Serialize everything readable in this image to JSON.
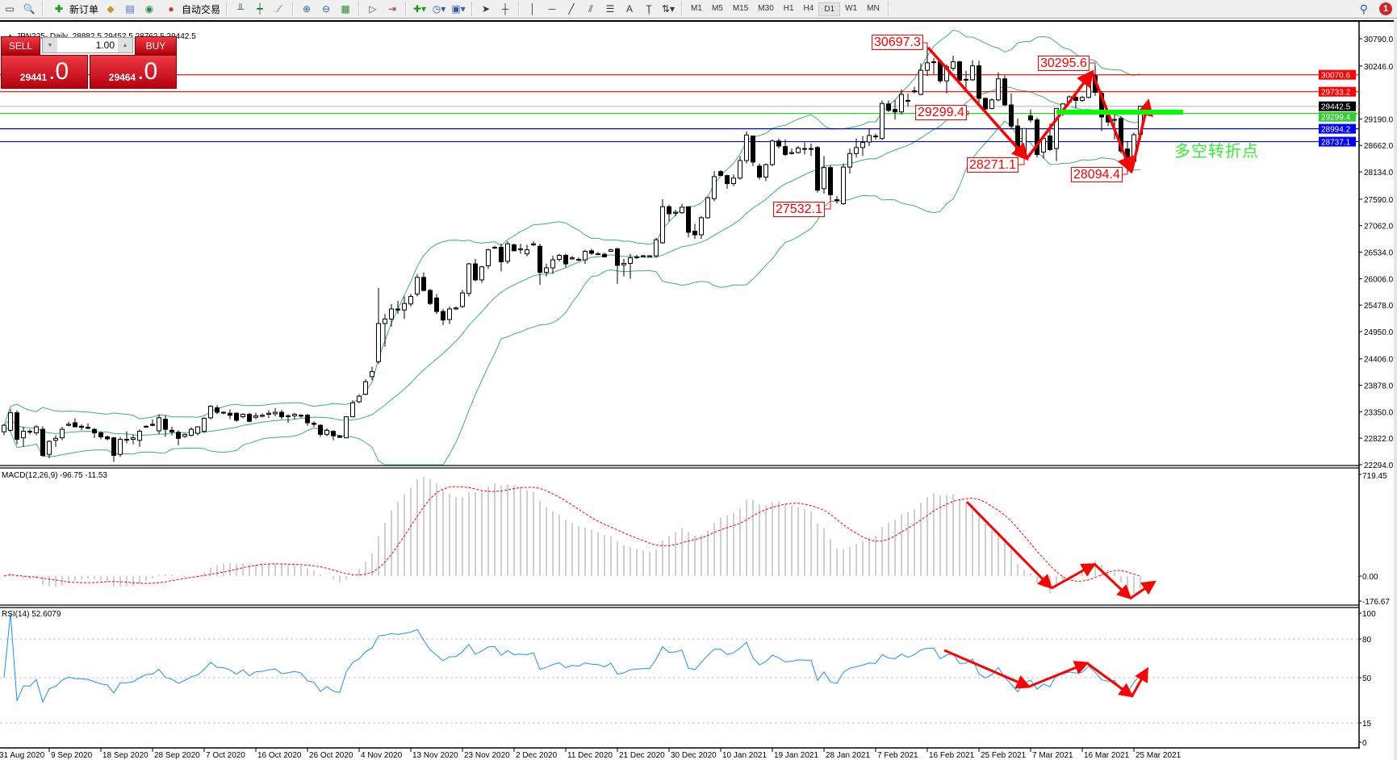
{
  "toolbar": {
    "new_order": "新订单",
    "auto_trading": "自动交易",
    "timeframes": [
      "M1",
      "M5",
      "M15",
      "M30",
      "H1",
      "H4",
      "D1",
      "W1",
      "MN"
    ],
    "active_timeframe": "D1",
    "notification_count": "1"
  },
  "chart": {
    "symbol_line": "JPN225-,Daily",
    "ohlc_text": "28882.5 29452.5 28762.5 29442.5"
  },
  "trade_panel": {
    "sell_label": "SELL",
    "buy_label": "BUY",
    "volume": "1.00",
    "sell_price_main": "29441",
    "sell_price_frac": ".0",
    "buy_price_main": "29464",
    "buy_price_frac": ".0"
  },
  "annotations": {
    "high1": "30697.3",
    "level": "29299.4",
    "low1": "28271.1",
    "high2": "30295.6",
    "low2": "28094.4",
    "low0": "27532.1",
    "note": "多空转折点"
  },
  "colors": {
    "bull_fill": "#ffffff",
    "bear_fill": "#000000",
    "bollinger": "#3cb371",
    "rsi": "#1e90ff",
    "macd_hist": "#c0c0c0",
    "macd_signal": "#ff0000",
    "arrow": "#ff0000",
    "level_green": "#00ff00"
  },
  "chart_data": {
    "type": "candlestick",
    "price_axis_ticks": [
      "30790.0",
      "30246.0",
      "29190.0",
      "28662.0",
      "28134.0",
      "27590.0",
      "27062.0",
      "26534.0",
      "26006.0",
      "25478.0",
      "24950.0",
      "24406.0",
      "23878.0",
      "23350.0",
      "22822.0",
      "22294.0"
    ],
    "ylim": [
      22294,
      30790
    ],
    "date_labels": [
      {
        "label": "31 Aug 2020",
        "bar": -1
      },
      {
        "label": "9 Sep 2020",
        "bar": 7
      },
      {
        "label": "18 Sep 2020",
        "bar": 15
      },
      {
        "label": "28 Sep 2020",
        "bar": 23
      },
      {
        "label": "7 Oct 2020",
        "bar": 31
      },
      {
        "label": "16 Oct 2020",
        "bar": 39
      },
      {
        "label": "26 Oct 2020",
        "bar": 47
      },
      {
        "label": "4 Nov 2020",
        "bar": 55
      },
      {
        "label": "13 Nov 2020",
        "bar": 63
      },
      {
        "label": "23 Nov 2020",
        "bar": 71
      },
      {
        "label": "2 Dec 2020",
        "bar": 79
      },
      {
        "label": "11 Dec 2020",
        "bar": 87
      },
      {
        "label": "21 Dec 2020",
        "bar": 95
      },
      {
        "label": "30 Dec 2020",
        "bar": 103
      },
      {
        "label": "10 Jan 2021",
        "bar": 111
      },
      {
        "label": "19 Jan 2021",
        "bar": 119
      },
      {
        "label": "28 Jan 2021",
        "bar": 127
      },
      {
        "label": "7 Feb 2021",
        "bar": 135
      },
      {
        "label": "16 Feb 2021",
        "bar": 143
      },
      {
        "label": "25 Feb 2021",
        "bar": 151
      },
      {
        "label": "7 Mar 2021",
        "bar": 159
      },
      {
        "label": "16 Mar 2021",
        "bar": 167
      },
      {
        "label": "25 Mar 2021",
        "bar": 175
      }
    ],
    "hlines": [
      {
        "price": 30070.6,
        "label": "30070.6",
        "color": "#ff0000",
        "tag_bg": "#ff0000"
      },
      {
        "price": 29733.2,
        "label": "29733.2",
        "color": "#ff0000",
        "tag_bg": "#ff0000"
      },
      {
        "price": 29442.5,
        "label": "29442.5",
        "color": "#c0c0c0",
        "tag_bg": "#000000"
      },
      {
        "price": 29299.4,
        "label": "29299.4",
        "color": "#32cd32",
        "tag_bg": "#32cd32"
      },
      {
        "price": 28994.2,
        "label": "28994.2",
        "color": "#0000ff",
        "tag_bg": "#0000ff"
      },
      {
        "price": 28737.1,
        "label": "28737.1",
        "color": "#0000ff",
        "tag_bg": "#0000ff"
      }
    ],
    "bollinger": {
      "period": 20,
      "deviation": 2
    },
    "candles": [
      [
        22950,
        23100,
        22880,
        23080
      ],
      [
        22980,
        23400,
        22950,
        23330
      ],
      [
        23330,
        23380,
        22700,
        22800
      ],
      [
        22830,
        23050,
        22650,
        22960
      ],
      [
        22950,
        23000,
        22900,
        22960
      ],
      [
        22930,
        23080,
        22880,
        23050
      ],
      [
        23000,
        23060,
        22450,
        22480
      ],
      [
        22500,
        22780,
        22420,
        22760
      ],
      [
        22780,
        22880,
        22650,
        22820
      ],
      [
        22830,
        23050,
        22780,
        23000
      ],
      [
        23080,
        23150,
        23060,
        23100
      ],
      [
        23130,
        23220,
        23050,
        23050
      ],
      [
        23060,
        23100,
        22980,
        23040
      ],
      [
        23040,
        23120,
        23000,
        23020
      ],
      [
        23000,
        23020,
        22830,
        22930
      ],
      [
        22930,
        22960,
        22800,
        22850
      ],
      [
        22850,
        22880,
        22780,
        22810
      ],
      [
        22830,
        22850,
        22350,
        22480
      ],
      [
        22500,
        22850,
        22450,
        22800
      ],
      [
        22790,
        22960,
        22720,
        22800
      ],
      [
        22800,
        22900,
        22700,
        22830
      ],
      [
        22780,
        23000,
        22650,
        22960
      ],
      [
        23050,
        23080,
        23040,
        23060
      ],
      [
        23100,
        23200,
        23060,
        23080
      ],
      [
        22970,
        23300,
        22900,
        23230
      ],
      [
        23200,
        23280,
        22850,
        23000
      ],
      [
        22980,
        23050,
        22880,
        22950
      ],
      [
        22940,
        22980,
        22680,
        22820
      ],
      [
        22860,
        22920,
        22830,
        22900
      ],
      [
        22880,
        23040,
        22860,
        23000
      ],
      [
        22920,
        23060,
        22880,
        23050
      ],
      [
        22960,
        23240,
        22930,
        23220
      ],
      [
        23230,
        23480,
        23200,
        23460
      ],
      [
        23430,
        23480,
        23300,
        23340
      ],
      [
        23340,
        23360,
        23300,
        23330
      ],
      [
        23320,
        23400,
        23200,
        23280
      ],
      [
        23320,
        23340,
        23150,
        23180
      ],
      [
        23250,
        23320,
        23220,
        23300
      ],
      [
        23300,
        23330,
        23140,
        23160
      ],
      [
        23240,
        23330,
        23200,
        23270
      ],
      [
        23260,
        23320,
        23240,
        23280
      ],
      [
        23300,
        23380,
        23230,
        23320
      ],
      [
        23310,
        23420,
        23260,
        23340
      ],
      [
        23340,
        23390,
        23200,
        23250
      ],
      [
        23270,
        23300,
        23130,
        23270
      ],
      [
        23270,
        23330,
        23200,
        23300
      ],
      [
        23280,
        23300,
        23230,
        23270
      ],
      [
        23280,
        23310,
        23070,
        23130
      ],
      [
        23120,
        23160,
        23050,
        23100
      ],
      [
        23080,
        23100,
        22850,
        22900
      ],
      [
        22900,
        23020,
        22860,
        22980
      ],
      [
        22960,
        22980,
        22780,
        22870
      ],
      [
        22870,
        22890,
        22830,
        22840
      ],
      [
        22830,
        23260,
        22830,
        23250
      ],
      [
        23250,
        23580,
        23240,
        23530
      ],
      [
        23550,
        23700,
        23520,
        23660
      ],
      [
        23700,
        24000,
        23680,
        23950
      ],
      [
        24050,
        24250,
        23980,
        24150
      ],
      [
        24350,
        25820,
        24300,
        25110
      ],
      [
        25110,
        25300,
        24650,
        25200
      ],
      [
        25200,
        25500,
        25050,
        25400
      ],
      [
        25400,
        25560,
        25300,
        25380
      ],
      [
        25380,
        25650,
        25200,
        25510
      ],
      [
        25500,
        25700,
        25450,
        25650
      ],
      [
        25700,
        26100,
        25650,
        26030
      ],
      [
        26030,
        26130,
        25750,
        25770
      ],
      [
        25770,
        25800,
        25480,
        25510
      ],
      [
        25620,
        25700,
        25300,
        25350
      ],
      [
        25350,
        25400,
        25080,
        25180
      ],
      [
        25190,
        25450,
        25100,
        25400
      ],
      [
        25400,
        25450,
        25380,
        25420
      ],
      [
        25450,
        25780,
        25420,
        25720
      ],
      [
        25710,
        26320,
        25650,
        26300
      ],
      [
        26300,
        26400,
        25950,
        25980
      ],
      [
        25980,
        26260,
        25920,
        26240
      ],
      [
        26260,
        26600,
        26200,
        26580
      ],
      [
        26620,
        26660,
        26600,
        26630
      ],
      [
        26630,
        26700,
        26150,
        26340
      ],
      [
        26350,
        26750,
        26300,
        26700
      ],
      [
        26680,
        26700,
        26550,
        26560
      ],
      [
        26580,
        26700,
        26500,
        26600
      ],
      [
        26500,
        26680,
        26450,
        26580
      ],
      [
        26680,
        26750,
        26650,
        26700
      ],
      [
        26650,
        26700,
        25880,
        26130
      ],
      [
        26130,
        26300,
        26050,
        26220
      ],
      [
        26220,
        26460,
        26100,
        26380
      ],
      [
        26390,
        26500,
        26350,
        26470
      ],
      [
        26470,
        26500,
        26230,
        26300
      ],
      [
        26400,
        26460,
        26380,
        26420
      ],
      [
        26380,
        26430,
        26350,
        26390
      ],
      [
        26380,
        26580,
        26300,
        26550
      ],
      [
        26560,
        26600,
        26480,
        26510
      ],
      [
        26500,
        26540,
        26480,
        26500
      ],
      [
        26490,
        26520,
        26430,
        26440
      ],
      [
        26550,
        26600,
        26540,
        26580
      ],
      [
        26600,
        26620,
        25900,
        26270
      ],
      [
        26280,
        26400,
        26050,
        26310
      ],
      [
        26310,
        26500,
        26000,
        26420
      ],
      [
        26430,
        26480,
        26400,
        26440
      ],
      [
        26450,
        26480,
        26440,
        26460
      ],
      [
        26450,
        26470,
        26440,
        26460
      ],
      [
        26460,
        26820,
        26420,
        26780
      ],
      [
        26720,
        27590,
        26700,
        27440
      ],
      [
        27440,
        27480,
        27150,
        27300
      ],
      [
        27310,
        27380,
        27250,
        27330
      ],
      [
        27320,
        27500,
        27300,
        27430
      ],
      [
        27440,
        27440,
        26830,
        26930
      ],
      [
        26950,
        27100,
        26800,
        26880
      ],
      [
        26880,
        27250,
        26800,
        27220
      ],
      [
        27220,
        27640,
        27200,
        27620
      ],
      [
        27600,
        28150,
        27550,
        28040
      ],
      [
        28140,
        28170,
        28050,
        28060
      ],
      [
        28060,
        28080,
        27800,
        27900
      ],
      [
        27900,
        28080,
        27850,
        28010
      ],
      [
        28010,
        28450,
        27980,
        28360
      ],
      [
        28360,
        28940,
        28300,
        28870
      ],
      [
        28850,
        28850,
        28250,
        28330
      ],
      [
        28250,
        28300,
        27980,
        28030
      ],
      [
        28030,
        28300,
        27950,
        28280
      ],
      [
        28280,
        28780,
        28250,
        28750
      ],
      [
        28750,
        28800,
        28600,
        28650
      ],
      [
        28640,
        28780,
        28450,
        28480
      ],
      [
        28500,
        28600,
        28480,
        28520
      ],
      [
        28520,
        28650,
        28500,
        28610
      ],
      [
        28600,
        28720,
        28480,
        28600
      ],
      [
        28600,
        28700,
        28450,
        28600
      ],
      [
        28620,
        28650,
        27720,
        27770
      ],
      [
        27800,
        28450,
        27700,
        28220
      ],
      [
        28220,
        28260,
        27532,
        27680
      ],
      [
        27580,
        27650,
        27500,
        27580
      ],
      [
        27500,
        28300,
        27480,
        28230
      ],
      [
        28230,
        28600,
        28100,
        28500
      ],
      [
        28500,
        28800,
        28420,
        28620
      ],
      [
        28620,
        28850,
        28450,
        28720
      ],
      [
        28730,
        29000,
        28650,
        28860
      ],
      [
        28840,
        28900,
        28780,
        28850
      ],
      [
        28800,
        29560,
        28770,
        29500
      ],
      [
        29490,
        29560,
        29330,
        29360
      ],
      [
        29380,
        29570,
        29180,
        29330
      ],
      [
        29330,
        29780,
        29280,
        29680
      ],
      [
        29560,
        29700,
        29440,
        29560
      ],
      [
        29740,
        29830,
        29700,
        29750
      ],
      [
        29680,
        30300,
        29660,
        30160
      ],
      [
        30160,
        30697,
        30050,
        30310
      ],
      [
        30320,
        30400,
        30080,
        30330
      ],
      [
        30330,
        30350,
        29900,
        29950
      ],
      [
        29950,
        30280,
        29700,
        30230
      ],
      [
        30200,
        30450,
        30150,
        30330
      ],
      [
        30330,
        30350,
        29920,
        29960
      ],
      [
        29970,
        30150,
        29800,
        29980
      ],
      [
        29970,
        30360,
        29950,
        30250
      ],
      [
        30250,
        30350,
        29500,
        29600
      ],
      [
        29600,
        29620,
        29300,
        29390
      ],
      [
        29400,
        29600,
        29380,
        29570
      ],
      [
        29570,
        30120,
        29540,
        29990
      ],
      [
        29990,
        30060,
        29450,
        29470
      ],
      [
        29470,
        29700,
        29000,
        29050
      ],
      [
        29050,
        29200,
        28450,
        28480
      ],
      [
        28480,
        29000,
        28271,
        29000
      ],
      [
        29250,
        29380,
        29120,
        29170
      ],
      [
        29170,
        29220,
        28420,
        28480
      ],
      [
        28530,
        28820,
        28400,
        28800
      ],
      [
        28850,
        29100,
        28550,
        28580
      ],
      [
        28600,
        29400,
        28350,
        29400
      ],
      [
        29310,
        29500,
        29250,
        29490
      ],
      [
        29530,
        29660,
        29500,
        29630
      ],
      [
        29620,
        29680,
        29400,
        29560
      ],
      [
        29560,
        29650,
        29530,
        29620
      ],
      [
        29620,
        30100,
        29600,
        30050
      ],
      [
        30050,
        30296,
        29650,
        29720
      ],
      [
        29700,
        29750,
        28950,
        29230
      ],
      [
        29260,
        29300,
        29050,
        29130
      ],
      [
        29180,
        29300,
        28780,
        29180
      ],
      [
        29200,
        29250,
        28500,
        28550
      ],
      [
        28590,
        28750,
        28094,
        28300
      ],
      [
        28345,
        28920,
        28280,
        28875
      ],
      [
        28882.5,
        29452.5,
        28762.5,
        29442.5
      ]
    ],
    "indicators": {
      "macd": {
        "label": "MACD(12,26,9) -96.75 -11.53",
        "fast": 12,
        "slow": 26,
        "signal": 9,
        "ylim": [
          -176.67,
          719.45
        ],
        "ticks": [
          "719.45",
          "0.00",
          "-176.67"
        ]
      },
      "rsi": {
        "label": "RSI(14) 52.6079",
        "period": 14,
        "ylim": [
          0,
          100
        ],
        "levels": [
          80,
          50,
          15
        ],
        "ticks": [
          "100",
          "80",
          "50",
          "15",
          "0"
        ]
      }
    }
  }
}
